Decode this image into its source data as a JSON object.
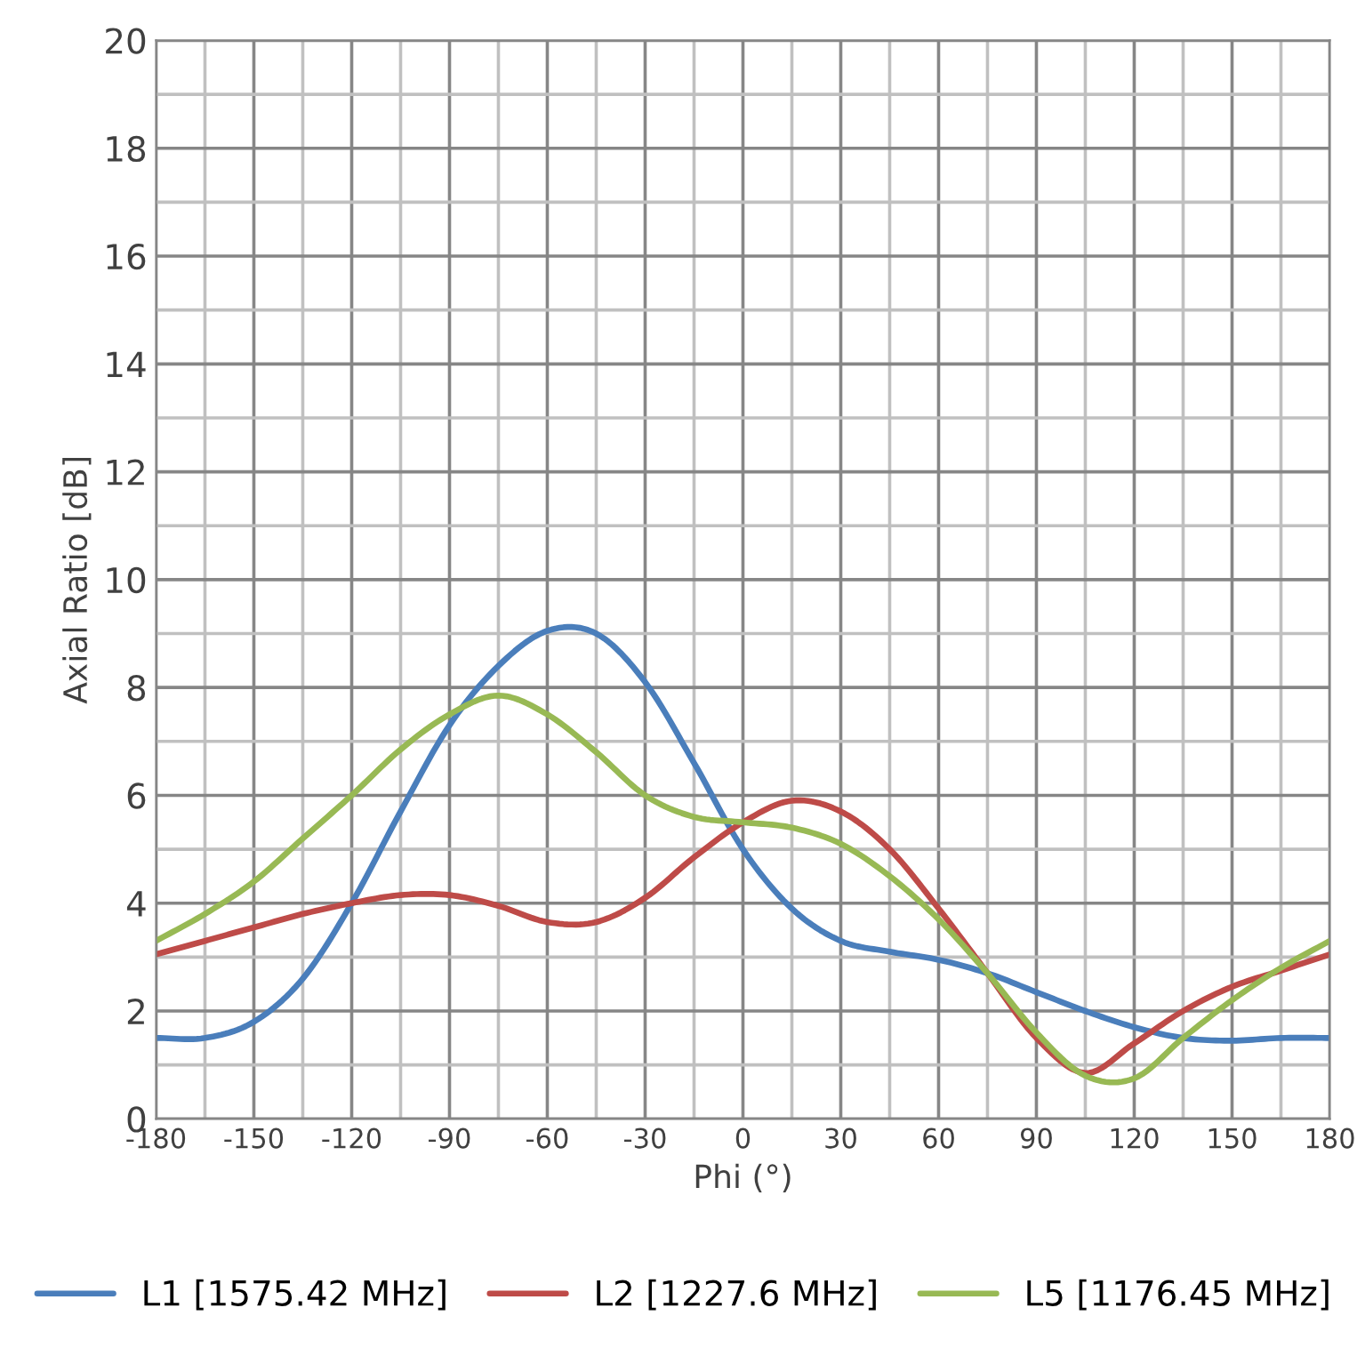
{
  "chart_data": {
    "type": "line",
    "xlabel": "Phi (°)",
    "ylabel": "Axial Ratio [dB]",
    "x": [
      -180,
      -165,
      -150,
      -135,
      -120,
      -105,
      -90,
      -75,
      -60,
      -45,
      -30,
      -15,
      0,
      15,
      30,
      45,
      60,
      75,
      90,
      105,
      120,
      135,
      150,
      165,
      180
    ],
    "series": [
      {
        "name": "L1 [1575.42 MHz]",
        "color": "#4a7ebb",
        "values": [
          1.5,
          1.5,
          1.8,
          2.6,
          4.0,
          5.7,
          7.3,
          8.4,
          9.05,
          9.0,
          8.1,
          6.6,
          5.0,
          3.9,
          3.3,
          3.1,
          2.95,
          2.7,
          2.35,
          2.0,
          1.7,
          1.5,
          1.45,
          1.5,
          1.5
        ]
      },
      {
        "name": "L2 [1227.6 MHz]",
        "color": "#be4b48",
        "values": [
          3.05,
          3.3,
          3.55,
          3.8,
          4.0,
          4.15,
          4.15,
          3.95,
          3.65,
          3.65,
          4.1,
          4.85,
          5.5,
          5.9,
          5.7,
          5.0,
          3.9,
          2.7,
          1.5,
          0.85,
          1.4,
          2.0,
          2.45,
          2.75,
          3.05
        ]
      },
      {
        "name": "L5 [1176.45 MHz]",
        "color": "#98b954",
        "values": [
          3.3,
          3.8,
          4.4,
          5.2,
          6.0,
          6.85,
          7.5,
          7.85,
          7.5,
          6.8,
          6.0,
          5.6,
          5.5,
          5.4,
          5.1,
          4.5,
          3.7,
          2.7,
          1.6,
          0.8,
          0.75,
          1.5,
          2.2,
          2.8,
          3.3
        ]
      }
    ],
    "xlim": [
      -180,
      180
    ],
    "xticks": [
      -180,
      -150,
      -120,
      -90,
      -60,
      -30,
      0,
      30,
      60,
      90,
      120,
      150,
      180
    ],
    "ylim": [
      0,
      20
    ],
    "yticks": [
      0,
      2,
      4,
      6,
      8,
      10,
      12,
      14,
      16,
      18,
      20
    ],
    "grid": true,
    "legend": "bottom",
    "marker": "none",
    "line_style": "solid"
  }
}
